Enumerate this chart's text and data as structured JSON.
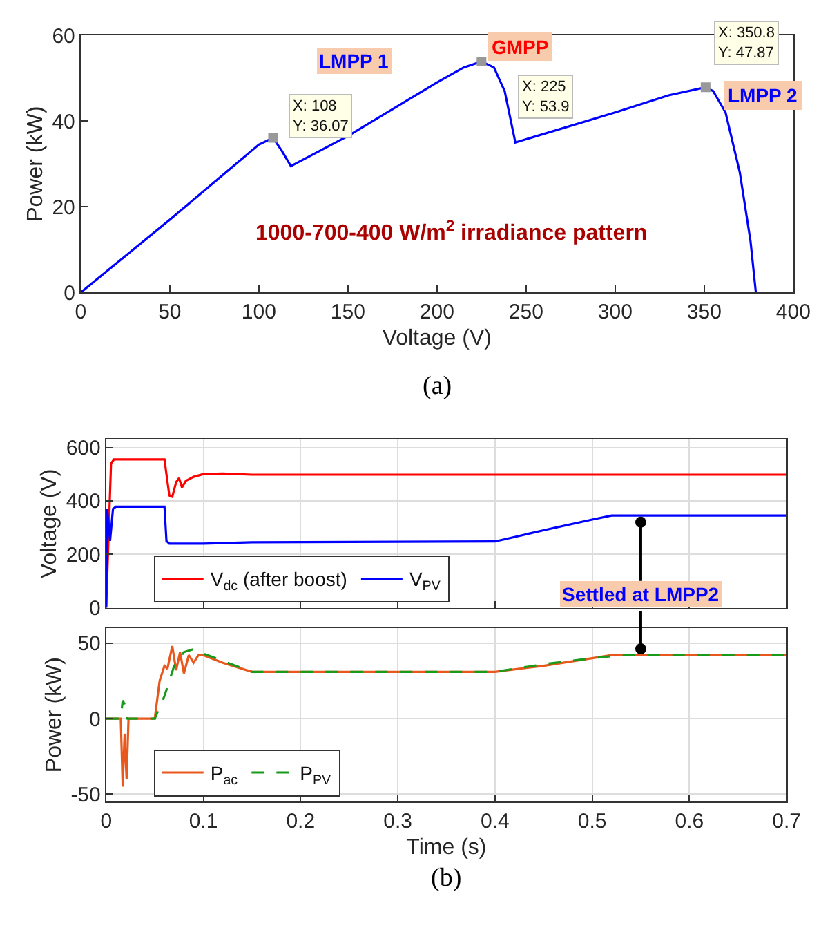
{
  "chart_data": [
    {
      "type": "line",
      "xlabel": "Voltage (V)",
      "ylabel": "Power (kW)",
      "xlim": [
        0,
        400
      ],
      "ylim": [
        0,
        60
      ],
      "xticks": [
        0,
        50,
        100,
        150,
        200,
        250,
        300,
        350,
        400
      ],
      "yticks": [
        0,
        20,
        40,
        60
      ],
      "grid": false,
      "legend": false,
      "marker": "none",
      "series": [
        {
          "type": "line",
          "color": "#0000ff",
          "x": [
            0,
            50,
            100,
            108,
            113,
            118,
            150,
            200,
            215,
            225,
            232,
            238,
            244,
            300,
            330,
            350.8,
            355,
            362,
            370,
            376,
            379
          ],
          "values": [
            0,
            17,
            34.5,
            36.07,
            33,
            29.5,
            36.5,
            49,
            52.5,
            53.9,
            52.5,
            47,
            35,
            42,
            46,
            47.87,
            47,
            42,
            28,
            12,
            0
          ]
        },
        {
          "type": "scatter",
          "marker": "square",
          "color": "#999999",
          "x": [
            108,
            225,
            350.8
          ],
          "values": [
            36.07,
            53.9,
            47.87
          ]
        }
      ],
      "annotations": [
        "LMPP 1",
        {
          "text": "X: 108\nY: 36.07",
          "x": 108,
          "y": 36.07
        },
        {
          "text": "GMPP",
          "x": 225,
          "y": 53.9
        },
        {
          "text": "X: 225\nY: 53.9",
          "x": 225,
          "y": 53.9
        },
        {
          "text": "X: 350.8\nY: 47.87",
          "x": 350.8,
          "y": 47.87
        },
        {
          "text": "LMPP 2",
          "x": 350.8,
          "y": 47.87
        },
        "1000-700-400 W/m$^{2}$ irradiance pattern",
        "(a)"
      ]
    },
    {
      "type": "line",
      "ylabel": "Voltage (V)",
      "xlim": [
        0,
        0.7
      ],
      "ylim": [
        0,
        630
      ],
      "xticks": [
        0,
        0.1,
        0.2,
        0.3,
        0.4,
        0.5,
        0.6,
        0.7
      ],
      "yticks": [
        0,
        200,
        400,
        600
      ],
      "grid": true,
      "legend": "bottom left",
      "tick_labels": "y",
      "marker": "none",
      "series": [
        {
          "name": "V$_{dc}$ (after boost)",
          "color": "#ff0000",
          "line_style": "solid",
          "x": [
            0,
            0.005,
            0.008,
            0.06,
            0.062,
            0.065,
            0.068,
            0.072,
            0.075,
            0.078,
            0.082,
            0.09,
            0.1,
            0.12,
            0.15,
            0.7
          ],
          "values": [
            0,
            540,
            555,
            555,
            500,
            420,
            415,
            470,
            485,
            450,
            475,
            490,
            500,
            502,
            498,
            498
          ]
        },
        {
          "name": "V$_{PV}$",
          "color": "#0000ff",
          "line_style": "solid",
          "x": [
            0,
            0.001,
            0.004,
            0.007,
            0.01,
            0.06,
            0.062,
            0.065,
            0.1,
            0.15,
            0.4,
            0.45,
            0.5,
            0.52,
            0.7
          ],
          "values": [
            0,
            370,
            250,
            370,
            378,
            378,
            250,
            240,
            240,
            245,
            248,
            290,
            330,
            345,
            345
          ]
        }
      ],
      "annotations": [
        {
          "text": "Settled at LMPP2",
          "x": 0.55,
          "y": 320
        }
      ]
    },
    {
      "type": "line",
      "xlabel": "Time (s)",
      "ylabel": "Power (kW)",
      "xlim": [
        0,
        0.7
      ],
      "ylim": [
        -55,
        60
      ],
      "xticks": [
        0,
        0.1,
        0.2,
        0.3,
        0.4,
        0.5,
        0.6,
        0.7
      ],
      "yticks": [
        -50,
        0,
        50
      ],
      "grid": true,
      "legend": "bottom left",
      "marker": "none",
      "series": [
        {
          "name": "P$_{ac}$",
          "color": "#e8571c",
          "line_style": "solid",
          "x": [
            0,
            0.015,
            0.017,
            0.019,
            0.021,
            0.023,
            0.05,
            0.055,
            0.06,
            0.063,
            0.068,
            0.072,
            0.076,
            0.08,
            0.085,
            0.09,
            0.095,
            0.1,
            0.12,
            0.15,
            0.4,
            0.45,
            0.5,
            0.52,
            0.7
          ],
          "values": [
            0,
            0,
            -45,
            -10,
            -40,
            0,
            0,
            25,
            35,
            33,
            48,
            32,
            44,
            30,
            42,
            37,
            42,
            42,
            37,
            31,
            31,
            35,
            40,
            42,
            42
          ]
        },
        {
          "name": "P$_{PV}$",
          "color": "#1a9a1a",
          "line_style": "dashed",
          "x": [
            0,
            0.015,
            0.017,
            0.02,
            0.022,
            0.05,
            0.06,
            0.07,
            0.08,
            0.09,
            0.1,
            0.15,
            0.4,
            0.45,
            0.5,
            0.53,
            0.7
          ],
          "values": [
            0,
            0,
            12,
            8,
            0,
            0,
            15,
            35,
            44,
            46,
            43,
            31,
            31,
            36,
            40,
            42,
            42
          ]
        }
      ],
      "annotations": [
        "(b)"
      ]
    }
  ]
}
